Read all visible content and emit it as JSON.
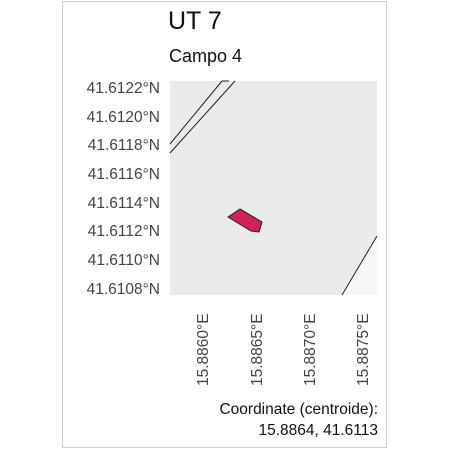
{
  "map": {
    "title": "UT 7",
    "subtitle": "Campo 4",
    "lat_ticks": [
      "41.6122°N",
      "41.6120°N",
      "41.6118°N",
      "41.6116°N",
      "41.6114°N",
      "41.6112°N",
      "41.6110°N",
      "41.6108°N"
    ],
    "lon_ticks": [
      "15.8860°E",
      "15.8865°E",
      "15.8870°E",
      "15.8875°E"
    ],
    "footer_label": "Coordinate (centroide):",
    "footer_value": "15.8864, 41.6113",
    "colors": {
      "land": "#ebebeb",
      "outside": "#f7f7f7",
      "parcel_fill": "#cc2456",
      "road": "#222222",
      "tick_text": "#444444"
    }
  }
}
